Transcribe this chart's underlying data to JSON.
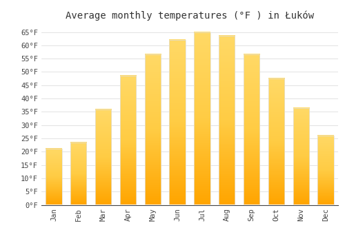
{
  "title": "Average monthly temperatures (°F ) in Łuków",
  "months": [
    "Jan",
    "Feb",
    "Mar",
    "Apr",
    "May",
    "Jun",
    "Jul",
    "Aug",
    "Sep",
    "Oct",
    "Nov",
    "Dec"
  ],
  "values": [
    21,
    23.5,
    36,
    48.5,
    56.5,
    62,
    65,
    63.5,
    56.5,
    47.5,
    36.5,
    26
  ],
  "bar_color": "#FFA500",
  "bar_color_top": "#FFD966",
  "bar_edge_color": "#E8E8E8",
  "background_color": "#FFFFFF",
  "grid_color": "#DDDDDD",
  "tick_label_color": "#444444",
  "title_color": "#333333",
  "axis_color": "#444444",
  "ylim": [
    0,
    68
  ],
  "yticks": [
    0,
    5,
    10,
    15,
    20,
    25,
    30,
    35,
    40,
    45,
    50,
    55,
    60,
    65
  ],
  "ytick_labels": [
    "0°F",
    "5°F",
    "10°F",
    "15°F",
    "20°F",
    "25°F",
    "30°F",
    "35°F",
    "40°F",
    "45°F",
    "50°F",
    "55°F",
    "60°F",
    "65°F"
  ],
  "title_fontsize": 10,
  "tick_fontsize": 7.5,
  "bar_width": 0.65
}
